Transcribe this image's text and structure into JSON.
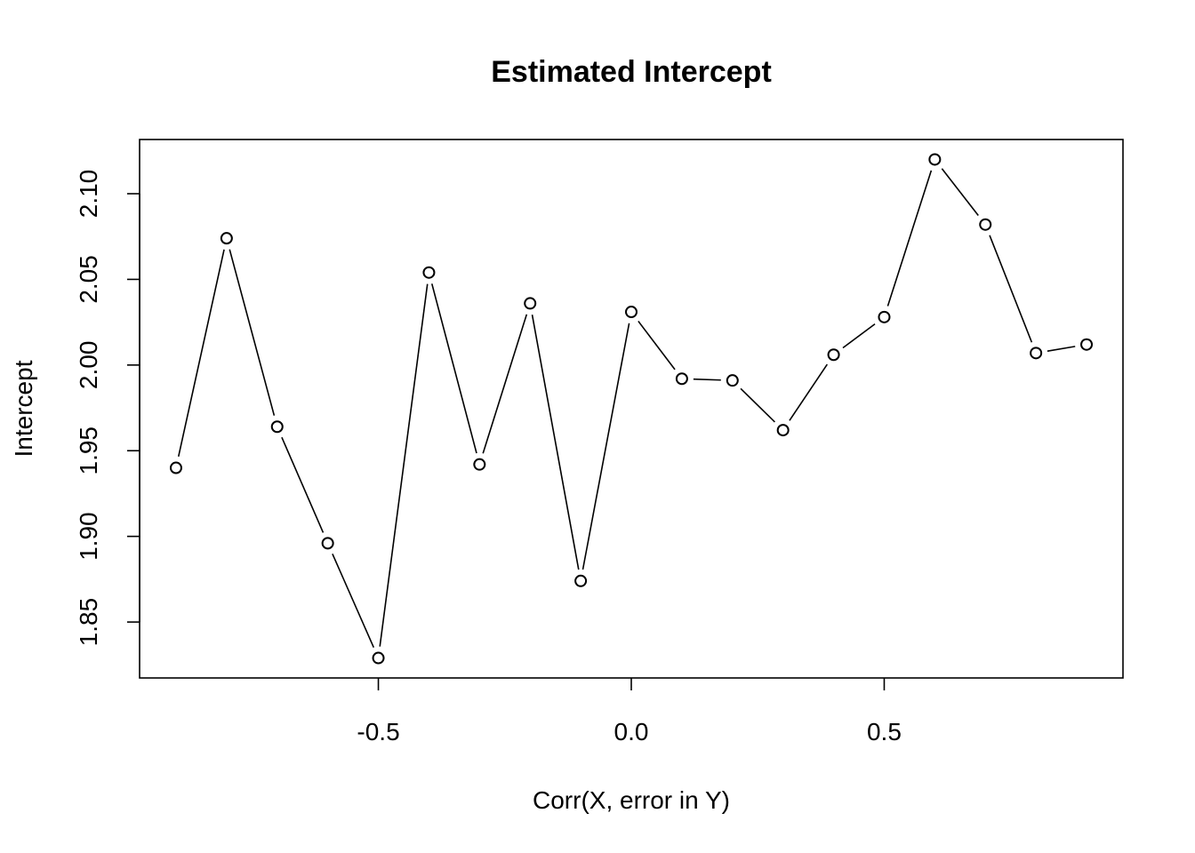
{
  "chart_data": {
    "type": "line",
    "title": "Estimated Intercept",
    "xlabel": "Corr(X, error in Y)",
    "ylabel": "Intercept",
    "x": [
      -0.9,
      -0.8,
      -0.7,
      -0.6,
      -0.5,
      -0.4,
      -0.3,
      -0.2,
      -0.1,
      0.0,
      0.1,
      0.2,
      0.3,
      0.4,
      0.5,
      0.6,
      0.7,
      0.8,
      0.9
    ],
    "series": [
      {
        "values": [
          1.94,
          2.074,
          1.964,
          1.896,
          1.829,
          2.054,
          1.942,
          2.036,
          1.874,
          2.031,
          1.992,
          1.991,
          1.962,
          2.006,
          2.028,
          2.12,
          2.082,
          2.007,
          2.012
        ]
      }
    ],
    "xlim": [
      -0.9,
      0.9
    ],
    "ylim": [
      1.829,
      2.12
    ],
    "xticks": [
      "-0.5",
      "0.0",
      "0.5"
    ],
    "yticks": [
      "1.85",
      "1.90",
      "1.95",
      "2.00",
      "2.05",
      "2.10"
    ],
    "markers": "open-circle",
    "line_style": "overplotted-gaps",
    "grid": false,
    "legend": "none"
  }
}
